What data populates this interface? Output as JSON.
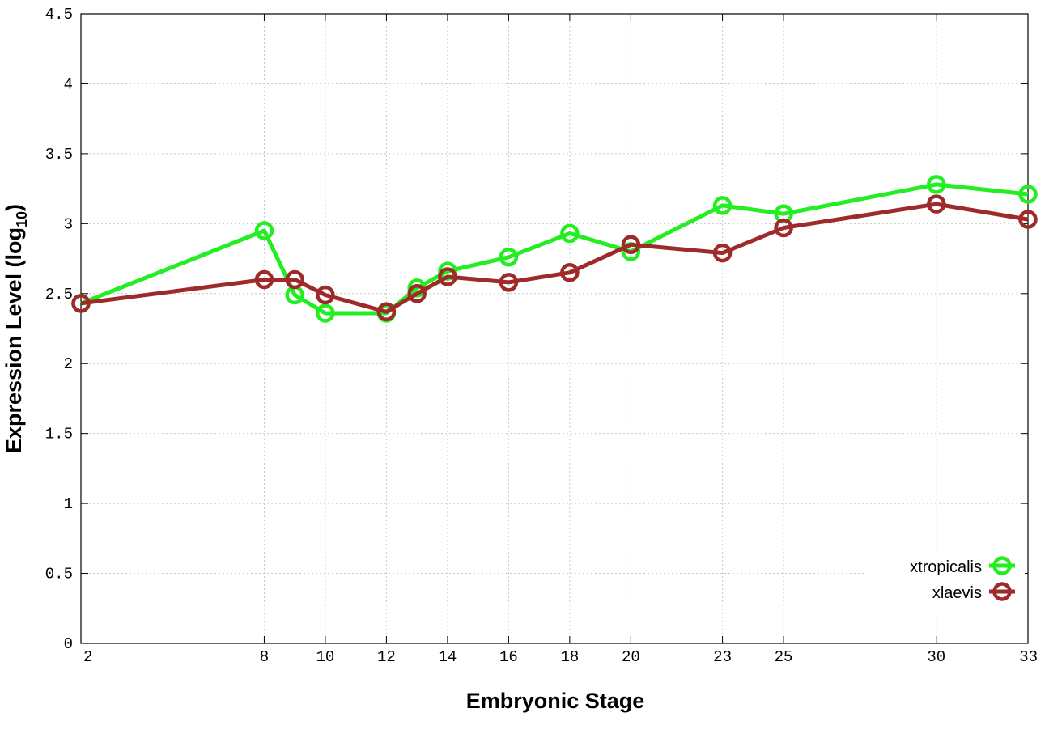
{
  "chart_data": {
    "type": "line",
    "xlabel": "Embryonic Stage",
    "ylabel": "Expression Level (log",
    "ylabel_sub": "10",
    "ylabel_close": ")",
    "ylim": [
      0,
      4.5
    ],
    "y_ticks": [
      {
        "value": 0,
        "label": "0"
      },
      {
        "value": 0.5,
        "label": "0.5"
      },
      {
        "value": 1,
        "label": "1"
      },
      {
        "value": 1.5,
        "label": "1.5"
      },
      {
        "value": 2,
        "label": "2"
      },
      {
        "value": 2.5,
        "label": "2.5"
      },
      {
        "value": 3,
        "label": "3"
      },
      {
        "value": 3.5,
        "label": "3.5"
      },
      {
        "value": 4,
        "label": "4"
      },
      {
        "value": 4.5,
        "label": "4.5"
      }
    ],
    "x_ticks": [
      "2",
      "8",
      "10",
      "12",
      "14",
      "16",
      "18",
      "20",
      "23",
      "25",
      "30",
      "33"
    ],
    "categories": [
      "2",
      "8",
      "9",
      "10",
      "12",
      "13",
      "14",
      "16",
      "18",
      "20",
      "23",
      "25",
      "30",
      "33"
    ],
    "grid": true,
    "legend_position": "bottom-right",
    "series": [
      {
        "name": "xtropicalis",
        "color": "#22ee22",
        "values": [
          2.43,
          2.95,
          2.49,
          2.36,
          2.36,
          2.54,
          2.66,
          2.76,
          2.93,
          2.8,
          3.13,
          3.07,
          3.28,
          3.21
        ]
      },
      {
        "name": "xlaevis",
        "color": "#9e2a2a",
        "values": [
          2.43,
          2.6,
          2.6,
          2.49,
          2.37,
          2.5,
          2.62,
          2.58,
          2.65,
          2.85,
          2.79,
          2.97,
          3.14,
          3.03
        ]
      }
    ]
  }
}
